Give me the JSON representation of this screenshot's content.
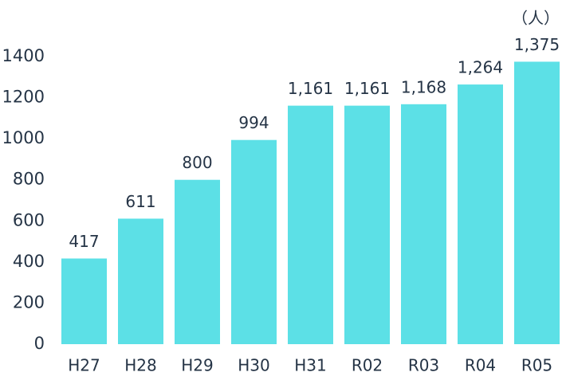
{
  "chart_data": {
    "type": "bar",
    "unit_label": "（人）",
    "categories": [
      "H27",
      "H28",
      "H29",
      "H30",
      "H31",
      "R02",
      "R03",
      "R04",
      "R05"
    ],
    "values": [
      417,
      611,
      800,
      994,
      1161,
      1161,
      1168,
      1264,
      1375
    ],
    "value_labels": [
      "417",
      "611",
      "800",
      "994",
      "1,161",
      "1,161",
      "1,168",
      "1,264",
      "1,375"
    ],
    "color": "#5ce0e6",
    "ylim": [
      0,
      1400
    ],
    "yticks": [
      0,
      200,
      400,
      600,
      800,
      1000,
      1200,
      1400
    ],
    "grid": false
  }
}
